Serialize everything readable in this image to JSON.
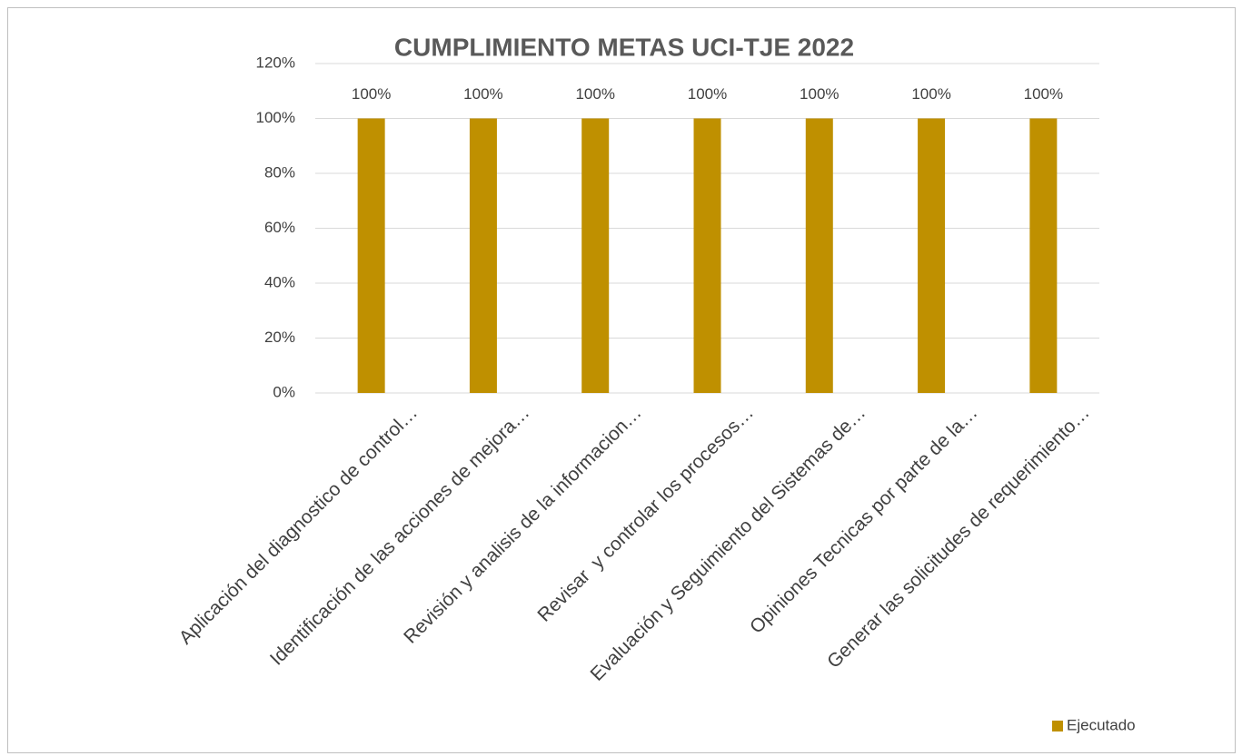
{
  "chart_data": {
    "type": "bar",
    "title": "CUMPLIMIENTO METAS UCI-TJE 2022",
    "categories": [
      "Aplicación del diagnostico de control…",
      "Identificación de las acciones de mejora…",
      "Revisión y analisis de la informacion…",
      "Revisar  y controlar los procesos…",
      "Evaluación y Seguimiento del Sistemas de…",
      "Opiniones Tecnicas por parte de la…",
      "Generar las solicitudes de requerimiento…"
    ],
    "series": [
      {
        "name": "Ejecutado",
        "color": "#bf9000",
        "values": [
          100,
          100,
          100,
          100,
          100,
          100,
          100
        ],
        "value_labels": [
          "100%",
          "100%",
          "100%",
          "100%",
          "100%",
          "100%",
          "100%"
        ]
      }
    ],
    "ylim": [
      0,
      120
    ],
    "yticks": [
      {
        "value": 0,
        "label": "0%"
      },
      {
        "value": 20,
        "label": "20%"
      },
      {
        "value": 40,
        "label": "40%"
      },
      {
        "value": 60,
        "label": "60%"
      },
      {
        "value": 80,
        "label": "80%"
      },
      {
        "value": 100,
        "label": "100%"
      },
      {
        "value": 120,
        "label": "120%"
      }
    ],
    "grid": true,
    "legend": "bottom-right"
  }
}
